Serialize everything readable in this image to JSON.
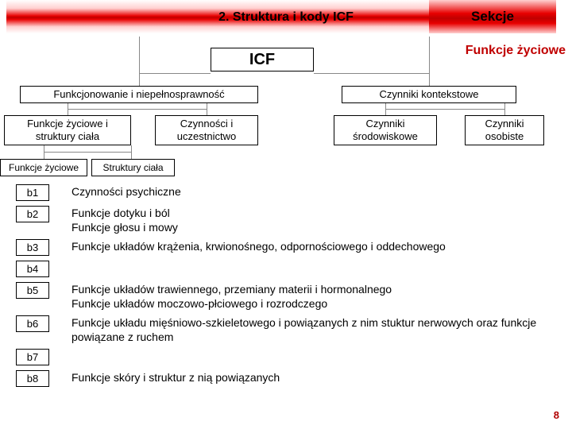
{
  "title": "2. Struktura i kody ICF",
  "section_label": "Sekcje",
  "subheading": "Funkcje życiowe",
  "page_number": "8",
  "tree": {
    "root": "ICF",
    "level2": {
      "left": "Funkcjonowanie i niepełnosprawność",
      "right": "Czynniki kontekstowe"
    },
    "level3": {
      "a": "Funkcje życiowe i struktury ciała",
      "b": "Czynności i uczestnictwo",
      "c": "Czynniki środowiskowe",
      "d": "Czynniki osobiste"
    },
    "level4": {
      "a": "Funkcje życiowe",
      "b": "Struktury ciała"
    }
  },
  "codes": [
    {
      "code": "b1",
      "desc": "Czynności psychiczne"
    },
    {
      "code": "b2",
      "desc": "Funkcje dotyku i ból\nFunkcje głosu i mowy"
    },
    {
      "code": "b3",
      "desc": "Funkcje układów krążenia, krwionośnego, odpornościowego i oddechowego"
    },
    {
      "code": "b4",
      "desc": ""
    },
    {
      "code": "b5",
      "desc": "Funkcje układów trawiennego, przemiany materii i hormonalnego\nFunkcje układów moczowo-płciowego i rozrodczego"
    },
    {
      "code": "b6",
      "desc": "Funkcje układu mięśniowo-szkieletowego i powiązanych z nim stuktur nerwowych oraz funkcje powiązane z ruchem"
    },
    {
      "code": "b7",
      "desc": ""
    },
    {
      "code": "b8",
      "desc": "Funkcje skóry i struktur z nią powiązanych"
    }
  ],
  "colors": {
    "accent_red": "#c00000",
    "border": "#000000",
    "connector": "#888888",
    "background": "#ffffff"
  }
}
